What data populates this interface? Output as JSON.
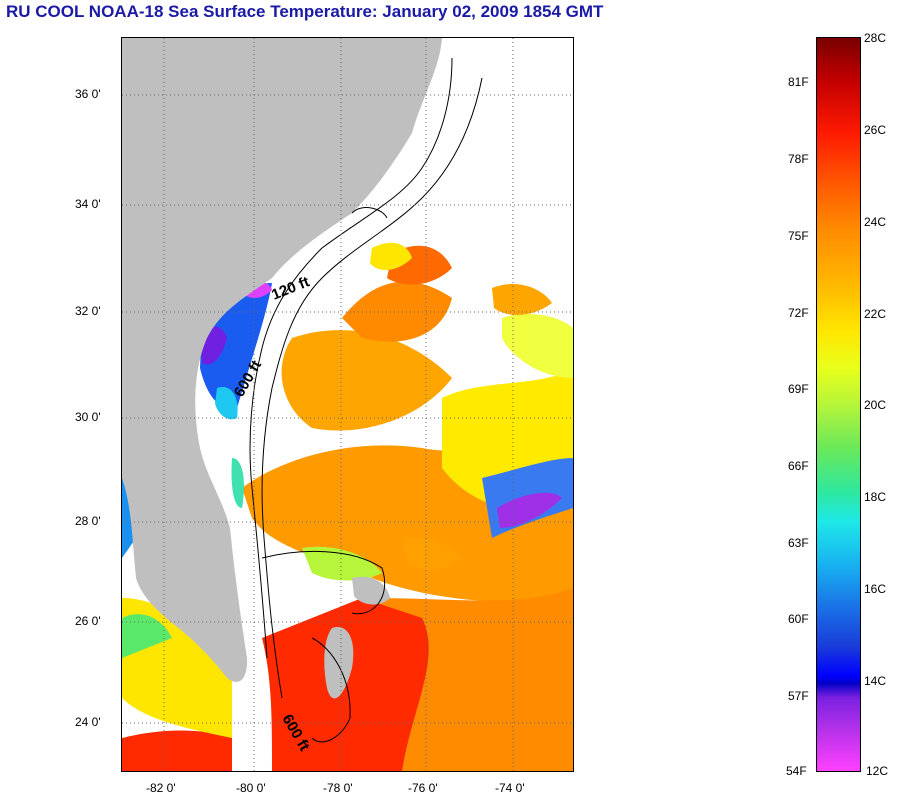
{
  "title": "RU COOL  NOAA-18  Sea Surface Temperature:  January 02, 2009 1854 GMT",
  "map": {
    "lat_labels": [
      "36 0'",
      "34 0'",
      "32 0'",
      "30 0'",
      "28 0'",
      "26 0'",
      "24 0'"
    ],
    "lon_labels": [
      "-82 0'",
      "-80 0'",
      "-78 0'",
      "-76 0'",
      "-74 0'"
    ],
    "contour_labels": [
      "120 ft",
      "600 ft",
      "600 ft"
    ],
    "colors": {
      "land": "#bfbfbf",
      "cloud": "#ffffff",
      "gulf_stream": "#ff2a00",
      "warm": "#ff8c00",
      "mild": "#ffe600",
      "cool": "#1a4cf0",
      "cold": "#a020f0"
    }
  },
  "colorbar": {
    "fahrenheit_labels": [
      "81F",
      "78F",
      "75F",
      "72F",
      "69F",
      "66F",
      "63F",
      "60F",
      "57F",
      "54F"
    ],
    "celsius_labels": [
      "28C",
      "26C",
      "24C",
      "22C",
      "20C",
      "18C",
      "16C",
      "14C",
      "12C"
    ]
  }
}
